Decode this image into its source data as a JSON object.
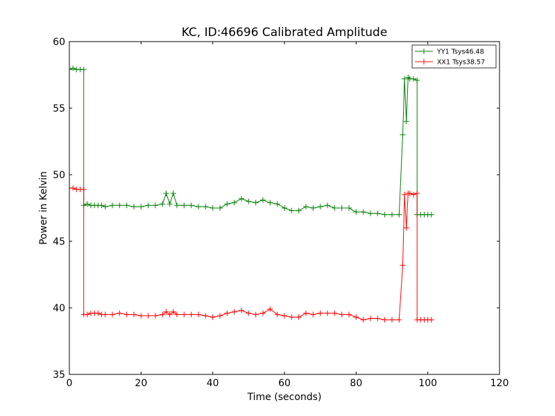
{
  "chart_data": {
    "type": "line",
    "title": "KC, ID:46696 Calibrated Amplitude",
    "xlabel": "Time (seconds)",
    "ylabel": "Power in Kelvin",
    "xlim": [
      0,
      120
    ],
    "ylim": [
      35,
      60
    ],
    "xticks": [
      0,
      20,
      40,
      60,
      80,
      100,
      120
    ],
    "yticks": [
      35,
      40,
      45,
      50,
      55,
      60
    ],
    "grid": false,
    "legend_position": "top-right",
    "series": [
      {
        "name": "YY1 Tsys46.48",
        "color": "#008000",
        "marker": "+",
        "x": [
          0,
          1,
          2,
          3,
          4,
          4,
          5,
          6,
          7,
          8,
          9,
          10,
          12,
          14,
          16,
          18,
          20,
          22,
          24,
          26,
          27,
          28,
          29,
          30,
          32,
          34,
          36,
          38,
          40,
          42,
          44,
          46,
          48,
          50,
          52,
          54,
          56,
          58,
          60,
          62,
          64,
          66,
          68,
          70,
          72,
          74,
          76,
          78,
          80,
          82,
          84,
          86,
          88,
          90,
          92,
          93,
          93.5,
          94,
          94.5,
          95,
          96,
          97,
          97,
          98,
          99,
          100,
          101
        ],
        "y": [
          57.9,
          58.0,
          57.9,
          57.9,
          57.9,
          47.7,
          47.8,
          47.7,
          47.7,
          47.7,
          47.7,
          47.6,
          47.7,
          47.7,
          47.7,
          47.6,
          47.6,
          47.7,
          47.7,
          47.8,
          48.6,
          47.8,
          48.6,
          47.7,
          47.7,
          47.7,
          47.6,
          47.6,
          47.5,
          47.5,
          47.8,
          47.9,
          48.2,
          48.0,
          47.9,
          48.1,
          47.9,
          47.8,
          47.5,
          47.3,
          47.3,
          47.6,
          47.5,
          47.6,
          47.7,
          47.5,
          47.5,
          47.5,
          47.2,
          47.2,
          47.1,
          47.1,
          47.0,
          47.0,
          47.0,
          53.0,
          57.2,
          54.0,
          57.3,
          57.2,
          57.2,
          57.1,
          47.0,
          47.0,
          47.0,
          47.0,
          47.0
        ]
      },
      {
        "name": "XX1 Tsys38.57",
        "color": "#ff0000",
        "marker": "+",
        "x": [
          0,
          1,
          2,
          3,
          4,
          4,
          5,
          6,
          7,
          8,
          9,
          10,
          12,
          14,
          16,
          18,
          20,
          22,
          24,
          26,
          27,
          28,
          29,
          30,
          32,
          34,
          36,
          38,
          40,
          42,
          44,
          46,
          48,
          50,
          52,
          54,
          56,
          58,
          60,
          62,
          64,
          66,
          68,
          70,
          72,
          74,
          76,
          78,
          80,
          82,
          84,
          86,
          88,
          90,
          92,
          93,
          93.5,
          94,
          94.5,
          95,
          96,
          97,
          97,
          98,
          99,
          100,
          101
        ],
        "y": [
          49.0,
          49.0,
          48.9,
          48.9,
          48.9,
          39.5,
          39.5,
          39.6,
          39.6,
          39.6,
          39.5,
          39.5,
          39.5,
          39.6,
          39.5,
          39.5,
          39.4,
          39.4,
          39.4,
          39.5,
          39.7,
          39.5,
          39.7,
          39.5,
          39.5,
          39.5,
          39.5,
          39.4,
          39.3,
          39.4,
          39.6,
          39.7,
          39.8,
          39.6,
          39.5,
          39.6,
          39.9,
          39.5,
          39.4,
          39.3,
          39.3,
          39.6,
          39.5,
          39.6,
          39.6,
          39.6,
          39.5,
          39.5,
          39.3,
          39.1,
          39.2,
          39.2,
          39.1,
          39.1,
          39.1,
          43.2,
          48.5,
          46.0,
          48.6,
          48.6,
          48.5,
          48.6,
          39.1,
          39.1,
          39.1,
          39.1,
          39.1
        ]
      }
    ]
  }
}
